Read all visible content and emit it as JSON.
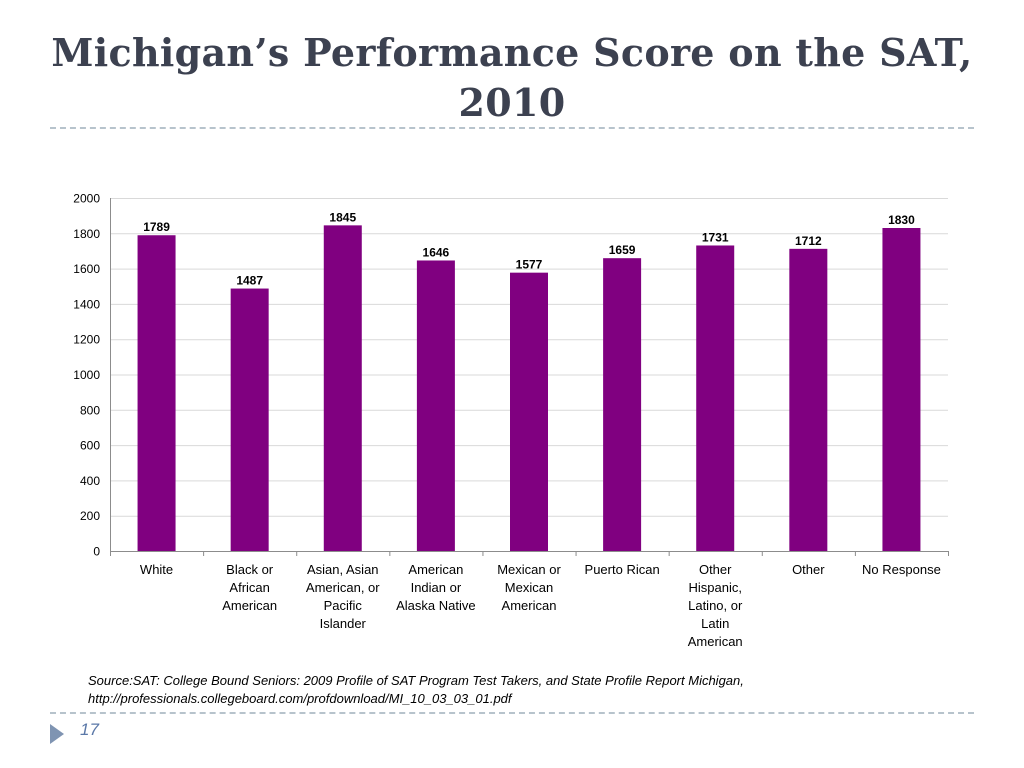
{
  "slide": {
    "title_line1": "Michigan’s Performance Score on the SAT,",
    "title_line2": "2010",
    "source_line1": "Source:SAT: College Bound Seniors: 2009 Profile of SAT Program Test Takers, and State Profile Report Michigan,",
    "source_line2": "http://professionals.collegeboard.com/profdownload/MI_10_03_03_01.pdf",
    "page_number": "17",
    "nav_icon": "triangle-right-icon"
  },
  "colors": {
    "bar": "#800080",
    "title": "#3c4150",
    "divider": "#b7c3cc",
    "page_number": "#5b78a8",
    "gridline": "#d9d9d9"
  },
  "chart_data": {
    "type": "bar",
    "title": "",
    "xlabel": "",
    "ylabel": "",
    "ylim": [
      0,
      2000
    ],
    "yticks": [
      0,
      200,
      400,
      600,
      800,
      1000,
      1200,
      1400,
      1600,
      1800,
      2000
    ],
    "grid": true,
    "legend": "none",
    "categories": [
      [
        "White"
      ],
      [
        "Black or",
        "African",
        "American"
      ],
      [
        "Asian, Asian",
        "American, or",
        "Pacific",
        "Islander"
      ],
      [
        "American",
        "Indian or",
        "Alaska Native"
      ],
      [
        "Mexican or",
        "Mexican",
        "American"
      ],
      [
        "Puerto Rican"
      ],
      [
        "Other",
        "Hispanic,",
        "Latino, or",
        "Latin",
        "American"
      ],
      [
        "Other"
      ],
      [
        "No Response"
      ]
    ],
    "values": [
      1789,
      1487,
      1845,
      1646,
      1577,
      1659,
      1731,
      1712,
      1830
    ]
  }
}
